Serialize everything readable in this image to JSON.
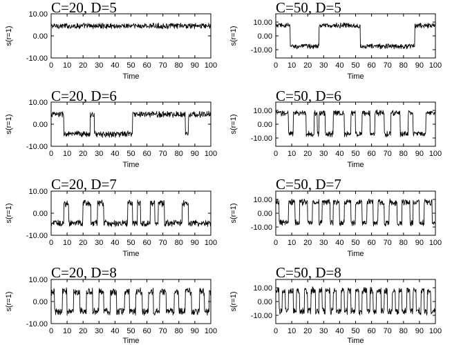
{
  "chart_data": [
    {
      "type": "line",
      "title": "C=20, D=5",
      "xlabel": "Time",
      "ylabel": "s(r=1)",
      "xlim": [
        0,
        100
      ],
      "ylim": [
        -10,
        10
      ],
      "x_ticks": [
        0,
        10,
        20,
        30,
        40,
        50,
        60,
        70,
        80,
        90,
        100
      ],
      "y_ticks": [
        10,
        0,
        -10
      ],
      "y_tick_labels": [
        "10.00",
        "0.00",
        "-10.00"
      ],
      "series": [
        {
          "segments": [
            [
              0,
              100,
              4.5
            ]
          ],
          "noise": 1.1
        }
      ]
    },
    {
      "type": "line",
      "title": "C=50, D=5",
      "xlabel": "Time",
      "ylabel": "s(r=1)",
      "xlim": [
        0,
        100
      ],
      "ylim": [
        -16,
        16
      ],
      "x_ticks": [
        0,
        10,
        20,
        30,
        40,
        50,
        60,
        70,
        80,
        90,
        100
      ],
      "y_ticks": [
        10,
        0,
        -10
      ],
      "y_tick_labels": [
        "10.00",
        "0.00",
        "-10.00"
      ],
      "series": [
        {
          "segments": [
            [
              0,
              9,
              7.5
            ],
            [
              9,
              27,
              -7.5
            ],
            [
              27,
              53,
              7.5
            ],
            [
              53,
              87,
              -7.5
            ],
            [
              87,
              100,
              7.5
            ]
          ],
          "noise": 1.6
        }
      ]
    },
    {
      "type": "line",
      "title": "C=20, D=6",
      "xlabel": "Time",
      "ylabel": "s(r=1)",
      "xlim": [
        0,
        100
      ],
      "ylim": [
        -10,
        10
      ],
      "x_ticks": [
        0,
        10,
        20,
        30,
        40,
        50,
        60,
        70,
        80,
        90,
        100
      ],
      "y_ticks": [
        10,
        0,
        -10
      ],
      "y_tick_labels": [
        "10.00",
        "0.00",
        "-10.00"
      ],
      "series": [
        {
          "segments": [
            [
              0,
              8,
              4.5
            ],
            [
              8,
              24.5,
              -4.5
            ],
            [
              24.5,
              27,
              4.5
            ],
            [
              27,
              51,
              -4.5
            ],
            [
              51,
              84,
              4.5
            ],
            [
              84,
              86,
              -4.5
            ],
            [
              86,
              100,
              4.5
            ]
          ],
          "noise": 1.2
        }
      ]
    },
    {
      "type": "line",
      "title": "C=50, D=6",
      "xlabel": "Time",
      "ylabel": "s(r=1)",
      "xlim": [
        0,
        100
      ],
      "ylim": [
        -16,
        16
      ],
      "x_ticks": [
        0,
        10,
        20,
        30,
        40,
        50,
        60,
        70,
        80,
        90,
        100
      ],
      "y_ticks": [
        10,
        0,
        -10
      ],
      "y_tick_labels": [
        "10.00",
        "0.00",
        "-10.00"
      ],
      "series": [
        {
          "segments": [
            [
              0,
              8,
              8
            ],
            [
              8,
              11,
              -7
            ],
            [
              11,
              19,
              8
            ],
            [
              19,
              24,
              -7
            ],
            [
              24,
              26,
              8
            ],
            [
              26,
              27,
              -7
            ],
            [
              27,
              31,
              8
            ],
            [
              31,
              36,
              -7
            ],
            [
              36,
              43,
              8
            ],
            [
              43,
              47,
              -7
            ],
            [
              47,
              50,
              8
            ],
            [
              50,
              54,
              -7
            ],
            [
              54,
              59,
              8
            ],
            [
              59,
              62,
              -7
            ],
            [
              62,
              68,
              8
            ],
            [
              68,
              72,
              -7
            ],
            [
              72,
              78,
              8
            ],
            [
              78,
              83,
              -7
            ],
            [
              83,
              86,
              8
            ],
            [
              86,
              94,
              -7
            ],
            [
              94,
              100,
              8
            ]
          ],
          "noise": 1.8
        }
      ]
    },
    {
      "type": "line",
      "title": "C=20, D=7",
      "xlabel": "Time",
      "ylabel": "s(r=1)",
      "xlim": [
        0,
        100
      ],
      "ylim": [
        -10,
        10
      ],
      "x_ticks": [
        0,
        10,
        20,
        30,
        40,
        50,
        60,
        70,
        80,
        90,
        100
      ],
      "y_ticks": [
        10,
        0,
        -10
      ],
      "y_tick_labels": [
        "10.00",
        "0.00",
        "-10.00"
      ],
      "series": [
        {
          "segments": [
            [
              0,
              8,
              -4.5
            ],
            [
              8,
              11,
              4.5
            ],
            [
              11,
              20,
              -4.5
            ],
            [
              20,
              25,
              4.5
            ],
            [
              25,
              29,
              -4.5
            ],
            [
              29,
              33,
              4.5
            ],
            [
              33,
              48,
              -4.5
            ],
            [
              48,
              51,
              4.5
            ],
            [
              51,
              54,
              -4.5
            ],
            [
              54,
              56,
              4.5
            ],
            [
              56,
              62,
              -4.5
            ],
            [
              62,
              65,
              4.5
            ],
            [
              65,
              67,
              -4.5
            ],
            [
              67,
              71,
              4.5
            ],
            [
              71,
              82,
              -4.5
            ],
            [
              82,
              86,
              4.5
            ],
            [
              86,
              100,
              -4.5
            ]
          ],
          "noise": 1.3
        }
      ]
    },
    {
      "type": "line",
      "title": "C=50, D=7",
      "xlabel": "Time",
      "ylabel": "s(r=1)",
      "xlim": [
        0,
        100
      ],
      "ylim": [
        -16,
        16
      ],
      "x_ticks": [
        0,
        10,
        20,
        30,
        40,
        50,
        60,
        70,
        80,
        90,
        100
      ],
      "y_ticks": [
        10,
        0,
        -10
      ],
      "y_tick_labels": [
        "10.00",
        "0.00",
        "-10.00"
      ],
      "series": [
        {
          "segments": [
            [
              0,
              2,
              8
            ],
            [
              2,
              8,
              -7
            ],
            [
              8,
              12,
              8
            ],
            [
              12,
              15,
              -7
            ],
            [
              15,
              20,
              8
            ],
            [
              20,
              23,
              -7
            ],
            [
              23,
              27,
              8
            ],
            [
              27,
              29,
              -7
            ],
            [
              29,
              34,
              8
            ],
            [
              34,
              36,
              -7
            ],
            [
              36,
              40,
              8
            ],
            [
              40,
              43,
              -7
            ],
            [
              43,
              47,
              8
            ],
            [
              47,
              50,
              -7
            ],
            [
              50,
              54,
              8
            ],
            [
              54,
              57,
              -7
            ],
            [
              57,
              61,
              8
            ],
            [
              61,
              64,
              -7
            ],
            [
              64,
              68,
              8
            ],
            [
              68,
              71,
              -7
            ],
            [
              71,
              76,
              8
            ],
            [
              76,
              79,
              -7
            ],
            [
              79,
              84,
              8
            ],
            [
              84,
              86,
              -7
            ],
            [
              86,
              90,
              8
            ],
            [
              90,
              93,
              -7
            ],
            [
              93,
              98,
              8
            ],
            [
              98,
              100,
              -7
            ]
          ],
          "noise": 2.0
        }
      ]
    },
    {
      "type": "line",
      "title": "C=20, D=8",
      "xlabel": "Time",
      "ylabel": "s(r=1)",
      "xlim": [
        0,
        100
      ],
      "ylim": [
        -10,
        10
      ],
      "x_ticks": [
        0,
        10,
        20,
        30,
        40,
        50,
        60,
        70,
        80,
        90,
        100
      ],
      "y_ticks": [
        10,
        0,
        -10
      ],
      "y_tick_labels": [
        "10.00",
        "0.00",
        "-10.00"
      ],
      "series": [
        {
          "segments": [
            [
              0,
              2,
              4.5
            ],
            [
              2,
              7,
              -4.5
            ],
            [
              7,
              10,
              4.5
            ],
            [
              10,
              14,
              -4.5
            ],
            [
              14,
              18,
              4.5
            ],
            [
              18,
              22,
              -4.5
            ],
            [
              22,
              26,
              4.5
            ],
            [
              26,
              30,
              -4.5
            ],
            [
              30,
              33,
              4.5
            ],
            [
              33,
              37,
              -4.5
            ],
            [
              37,
              41,
              4.5
            ],
            [
              41,
              46,
              -4.5
            ],
            [
              46,
              49,
              4.5
            ],
            [
              49,
              53,
              -4.5
            ],
            [
              53,
              57,
              4.5
            ],
            [
              57,
              61,
              -4.5
            ],
            [
              61,
              64,
              4.5
            ],
            [
              64,
              68,
              -4.5
            ],
            [
              68,
              72,
              4.5
            ],
            [
              72,
              77,
              -4.5
            ],
            [
              77,
              80,
              4.5
            ],
            [
              80,
              84,
              -4.5
            ],
            [
              84,
              88,
              4.5
            ],
            [
              88,
              93,
              -4.5
            ],
            [
              93,
              96,
              4.5
            ],
            [
              96,
              99,
              -4.5
            ],
            [
              99,
              100,
              4.5
            ]
          ],
          "noise": 1.5
        }
      ]
    },
    {
      "type": "line",
      "title": "C=50, D=8",
      "xlabel": "Time",
      "ylabel": "s(r=1)",
      "xlim": [
        0,
        100
      ],
      "ylim": [
        -16,
        16
      ],
      "x_ticks": [
        0,
        10,
        20,
        30,
        40,
        50,
        60,
        70,
        80,
        90,
        100
      ],
      "y_ticks": [
        10,
        0,
        -10
      ],
      "y_tick_labels": [
        "10.00",
        "0.00",
        "-10.00"
      ],
      "series": [
        {
          "segments": [
            [
              0,
              2,
              8
            ],
            [
              2,
              4,
              -7
            ],
            [
              4,
              6,
              8
            ],
            [
              6,
              8,
              -7
            ],
            [
              8,
              11,
              8
            ],
            [
              11,
              13,
              -7
            ],
            [
              13,
              15,
              8
            ],
            [
              15,
              18,
              -7
            ],
            [
              18,
              20,
              8
            ],
            [
              20,
              22,
              -7
            ],
            [
              22,
              25,
              8
            ],
            [
              25,
              27,
              -7
            ],
            [
              27,
              29,
              8
            ],
            [
              29,
              31,
              -7
            ],
            [
              31,
              34,
              8
            ],
            [
              34,
              36,
              -7
            ],
            [
              36,
              38,
              8
            ],
            [
              38,
              41,
              -7
            ],
            [
              41,
              43,
              8
            ],
            [
              43,
              45,
              -7
            ],
            [
              45,
              47,
              8
            ],
            [
              47,
              50,
              -7
            ],
            [
              50,
              52,
              8
            ],
            [
              52,
              54,
              -7
            ],
            [
              54,
              57,
              8
            ],
            [
              57,
              59,
              -7
            ],
            [
              59,
              61,
              8
            ],
            [
              61,
              63,
              -7
            ],
            [
              63,
              66,
              8
            ],
            [
              66,
              68,
              -7
            ],
            [
              68,
              70,
              8
            ],
            [
              70,
              73,
              -7
            ],
            [
              73,
              75,
              8
            ],
            [
              75,
              77,
              -7
            ],
            [
              77,
              79,
              8
            ],
            [
              79,
              82,
              -7
            ],
            [
              82,
              84,
              8
            ],
            [
              84,
              86,
              -7
            ],
            [
              86,
              88,
              8
            ],
            [
              88,
              91,
              -7
            ],
            [
              91,
              93,
              8
            ],
            [
              93,
              95,
              -7
            ],
            [
              95,
              97,
              8
            ],
            [
              97,
              100,
              -7
            ]
          ],
          "noise": 2.2
        }
      ]
    }
  ]
}
